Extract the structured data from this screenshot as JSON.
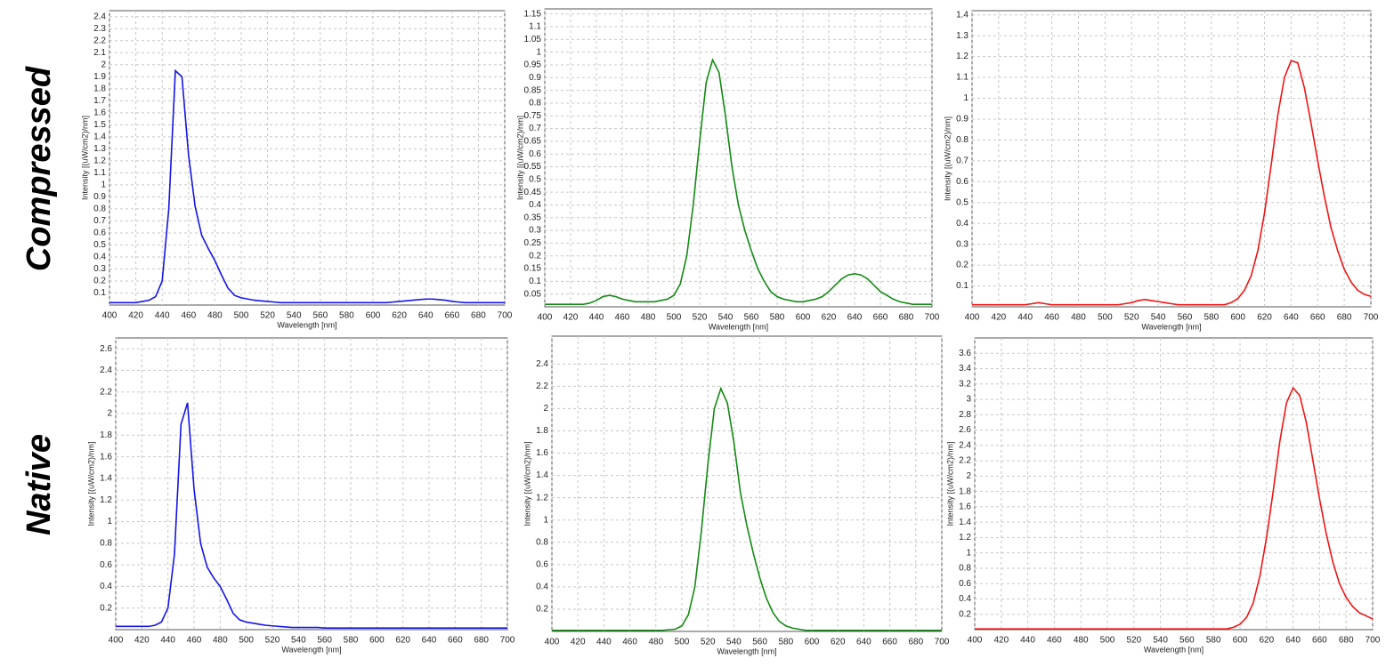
{
  "row_labels": [
    "Compressed",
    "Native"
  ],
  "chart_data": [
    {
      "type": "line",
      "xlabel": "Wavelength [nm]",
      "ylabel": "Intensity [(uW/cm2)/nm]",
      "grid": true,
      "x": [
        400,
        405,
        410,
        415,
        420,
        425,
        430,
        435,
        440,
        445,
        450,
        455,
        460,
        465,
        470,
        475,
        480,
        485,
        490,
        495,
        500,
        505,
        510,
        515,
        520,
        525,
        530,
        535,
        540,
        545,
        550,
        555,
        560,
        565,
        570,
        575,
        580,
        585,
        590,
        595,
        600,
        605,
        610,
        615,
        620,
        625,
        630,
        635,
        640,
        645,
        650,
        655,
        660,
        665,
        670,
        675,
        680,
        685,
        690,
        695,
        700
      ],
      "series": [
        {
          "color": "#1414e6",
          "values": [
            0.02,
            0.02,
            0.02,
            0.02,
            0.02,
            0.03,
            0.04,
            0.07,
            0.2,
            0.8,
            1.95,
            1.9,
            1.25,
            0.82,
            0.58,
            0.47,
            0.37,
            0.25,
            0.14,
            0.08,
            0.06,
            0.05,
            0.04,
            0.035,
            0.03,
            0.025,
            0.02,
            0.02,
            0.02,
            0.02,
            0.02,
            0.02,
            0.02,
            0.02,
            0.02,
            0.02,
            0.02,
            0.02,
            0.02,
            0.02,
            0.02,
            0.02,
            0.02,
            0.025,
            0.03,
            0.035,
            0.04,
            0.045,
            0.05,
            0.05,
            0.045,
            0.04,
            0.03,
            0.025,
            0.02,
            0.02,
            0.02,
            0.02,
            0.02,
            0.02,
            0.02
          ]
        }
      ],
      "xlim": [
        400,
        700
      ],
      "xticks": [
        400,
        420,
        440,
        460,
        480,
        500,
        520,
        540,
        560,
        580,
        600,
        620,
        640,
        660,
        680,
        700
      ],
      "ylim": [
        0,
        2.45
      ],
      "yticks": [
        0.1,
        0.2,
        0.3,
        0.4,
        0.5,
        0.6,
        0.7,
        0.8,
        0.9,
        1,
        1.1,
        1.2,
        1.3,
        1.4,
        1.5,
        1.6,
        1.7,
        1.8,
        1.9,
        2,
        2.1,
        2.2,
        2.3,
        2.4
      ]
    },
    {
      "type": "line",
      "xlabel": "Wavelength [nm]",
      "ylabel": "Intensity [(uW/cm2)/nm]",
      "grid": true,
      "x": [
        400,
        405,
        410,
        415,
        420,
        425,
        430,
        435,
        440,
        445,
        450,
        455,
        460,
        465,
        470,
        475,
        480,
        485,
        490,
        495,
        500,
        505,
        510,
        515,
        520,
        525,
        530,
        535,
        540,
        545,
        550,
        555,
        560,
        565,
        570,
        575,
        580,
        585,
        590,
        595,
        600,
        605,
        610,
        615,
        620,
        625,
        630,
        635,
        640,
        645,
        650,
        655,
        660,
        665,
        670,
        675,
        680,
        685,
        690,
        695,
        700
      ],
      "series": [
        {
          "color": "#138a13",
          "values": [
            0.01,
            0.01,
            0.01,
            0.01,
            0.01,
            0.01,
            0.01,
            0.015,
            0.025,
            0.04,
            0.045,
            0.04,
            0.03,
            0.025,
            0.02,
            0.02,
            0.02,
            0.02,
            0.025,
            0.03,
            0.045,
            0.09,
            0.2,
            0.4,
            0.65,
            0.88,
            0.97,
            0.92,
            0.75,
            0.55,
            0.4,
            0.3,
            0.22,
            0.15,
            0.1,
            0.06,
            0.04,
            0.03,
            0.025,
            0.02,
            0.02,
            0.025,
            0.03,
            0.04,
            0.06,
            0.085,
            0.11,
            0.125,
            0.13,
            0.125,
            0.11,
            0.085,
            0.06,
            0.045,
            0.03,
            0.02,
            0.015,
            0.01,
            0.01,
            0.01,
            0.01
          ]
        }
      ],
      "xlim": [
        400,
        700
      ],
      "xticks": [
        400,
        420,
        440,
        460,
        480,
        500,
        520,
        540,
        560,
        580,
        600,
        620,
        640,
        660,
        680,
        700
      ],
      "ylim": [
        0,
        1.17
      ],
      "yticks": [
        0.05,
        0.1,
        0.15,
        0.2,
        0.25,
        0.3,
        0.35,
        0.4,
        0.45,
        0.5,
        0.55,
        0.6,
        0.65,
        0.7,
        0.75,
        0.8,
        0.85,
        0.9,
        0.95,
        1,
        1.05,
        1.1,
        1.15
      ]
    },
    {
      "type": "line",
      "xlabel": "Wavelength [nm]",
      "ylabel": "Intensity [(uW/cm2)/nm]",
      "grid": true,
      "x": [
        400,
        405,
        410,
        415,
        420,
        425,
        430,
        435,
        440,
        445,
        450,
        455,
        460,
        465,
        470,
        475,
        480,
        485,
        490,
        495,
        500,
        505,
        510,
        515,
        520,
        525,
        530,
        535,
        540,
        545,
        550,
        555,
        560,
        565,
        570,
        575,
        580,
        585,
        590,
        595,
        600,
        605,
        610,
        615,
        620,
        625,
        630,
        635,
        640,
        645,
        650,
        655,
        660,
        665,
        670,
        675,
        680,
        685,
        690,
        695,
        700
      ],
      "series": [
        {
          "color": "#f01414",
          "values": [
            0.01,
            0.01,
            0.01,
            0.01,
            0.01,
            0.01,
            0.01,
            0.01,
            0.01,
            0.015,
            0.02,
            0.015,
            0.01,
            0.01,
            0.01,
            0.01,
            0.01,
            0.01,
            0.01,
            0.01,
            0.01,
            0.01,
            0.01,
            0.015,
            0.02,
            0.03,
            0.035,
            0.03,
            0.025,
            0.02,
            0.015,
            0.01,
            0.01,
            0.01,
            0.01,
            0.01,
            0.01,
            0.01,
            0.01,
            0.02,
            0.04,
            0.08,
            0.15,
            0.27,
            0.45,
            0.68,
            0.92,
            1.1,
            1.18,
            1.17,
            1.05,
            0.88,
            0.7,
            0.53,
            0.38,
            0.27,
            0.18,
            0.12,
            0.08,
            0.06,
            0.05
          ]
        }
      ],
      "xlim": [
        400,
        700
      ],
      "xticks": [
        400,
        420,
        440,
        460,
        480,
        500,
        520,
        540,
        560,
        580,
        600,
        620,
        640,
        660,
        680,
        700
      ],
      "ylim": [
        0,
        1.42
      ],
      "yticks": [
        0.1,
        0.2,
        0.3,
        0.4,
        0.5,
        0.6,
        0.7,
        0.8,
        0.9,
        1,
        1.1,
        1.2,
        1.3,
        1.4
      ]
    },
    {
      "type": "line",
      "xlabel": "Wavelength [nm]",
      "ylabel": "Intensity [(uW/cm2)/nm]",
      "grid": true,
      "x": [
        400,
        405,
        410,
        415,
        420,
        425,
        430,
        435,
        440,
        445,
        450,
        455,
        460,
        465,
        470,
        475,
        480,
        485,
        490,
        495,
        500,
        505,
        510,
        515,
        520,
        525,
        530,
        535,
        540,
        545,
        550,
        555,
        560,
        565,
        570,
        575,
        580,
        585,
        590,
        595,
        600,
        605,
        610,
        615,
        620,
        625,
        630,
        635,
        640,
        645,
        650,
        655,
        660,
        665,
        670,
        675,
        680,
        685,
        690,
        695,
        700
      ],
      "series": [
        {
          "color": "#1414e6",
          "values": [
            0.03,
            0.03,
            0.03,
            0.03,
            0.03,
            0.03,
            0.04,
            0.07,
            0.2,
            0.7,
            1.9,
            2.1,
            1.3,
            0.8,
            0.58,
            0.48,
            0.4,
            0.28,
            0.15,
            0.09,
            0.07,
            0.06,
            0.05,
            0.04,
            0.035,
            0.03,
            0.025,
            0.02,
            0.02,
            0.02,
            0.02,
            0.02,
            0.015,
            0.015,
            0.015,
            0.015,
            0.015,
            0.015,
            0.015,
            0.015,
            0.015,
            0.015,
            0.015,
            0.015,
            0.015,
            0.015,
            0.015,
            0.015,
            0.015,
            0.015,
            0.015,
            0.015,
            0.015,
            0.015,
            0.015,
            0.015,
            0.015,
            0.015,
            0.015,
            0.015,
            0.015
          ]
        }
      ],
      "xlim": [
        400,
        700
      ],
      "xticks": [
        400,
        420,
        440,
        460,
        480,
        500,
        520,
        540,
        560,
        580,
        600,
        620,
        640,
        660,
        680,
        700
      ],
      "ylim": [
        0,
        2.7
      ],
      "yticks": [
        0.2,
        0.4,
        0.6,
        0.8,
        1,
        1.2,
        1.4,
        1.6,
        1.8,
        2,
        2.2,
        2.4,
        2.6
      ]
    },
    {
      "type": "line",
      "xlabel": "Wavelength [nm]",
      "ylabel": "Intensity [(uW/cm2)/nm]",
      "grid": true,
      "x": [
        400,
        405,
        410,
        415,
        420,
        425,
        430,
        435,
        440,
        445,
        450,
        455,
        460,
        465,
        470,
        475,
        480,
        485,
        490,
        495,
        500,
        505,
        510,
        515,
        520,
        525,
        530,
        535,
        540,
        545,
        550,
        555,
        560,
        565,
        570,
        575,
        580,
        585,
        590,
        595,
        600,
        605,
        610,
        615,
        620,
        625,
        630,
        635,
        640,
        645,
        650,
        655,
        660,
        665,
        670,
        675,
        680,
        685,
        690,
        695,
        700
      ],
      "series": [
        {
          "color": "#138a13",
          "values": [
            0.01,
            0.01,
            0.01,
            0.01,
            0.01,
            0.01,
            0.01,
            0.01,
            0.01,
            0.01,
            0.01,
            0.01,
            0.01,
            0.01,
            0.01,
            0.01,
            0.01,
            0.01,
            0.015,
            0.02,
            0.05,
            0.15,
            0.4,
            0.9,
            1.5,
            2.0,
            2.18,
            2.05,
            1.7,
            1.25,
            0.95,
            0.7,
            0.48,
            0.3,
            0.17,
            0.09,
            0.05,
            0.03,
            0.02,
            0.01,
            0.01,
            0.01,
            0.01,
            0.01,
            0.01,
            0.01,
            0.01,
            0.01,
            0.01,
            0.01,
            0.01,
            0.01,
            0.01,
            0.01,
            0.01,
            0.01,
            0.01,
            0.01,
            0.01,
            0.01,
            0.01
          ]
        }
      ],
      "xlim": [
        400,
        700
      ],
      "xticks": [
        400,
        420,
        440,
        460,
        480,
        500,
        520,
        540,
        560,
        580,
        600,
        620,
        640,
        660,
        680,
        700
      ],
      "ylim": [
        0,
        2.65
      ],
      "yticks": [
        0.2,
        0.4,
        0.6,
        0.8,
        1,
        1.2,
        1.4,
        1.6,
        1.8,
        2,
        2.2,
        2.4
      ]
    },
    {
      "type": "line",
      "xlabel": "Wavelength [nm]",
      "ylabel": "Intensity [(uW/cm2)/nm]",
      "grid": true,
      "x": [
        400,
        405,
        410,
        415,
        420,
        425,
        430,
        435,
        440,
        445,
        450,
        455,
        460,
        465,
        470,
        475,
        480,
        485,
        490,
        495,
        500,
        505,
        510,
        515,
        520,
        525,
        530,
        535,
        540,
        545,
        550,
        555,
        560,
        565,
        570,
        575,
        580,
        585,
        590,
        595,
        600,
        605,
        610,
        615,
        620,
        625,
        630,
        635,
        640,
        645,
        650,
        655,
        660,
        665,
        670,
        675,
        680,
        685,
        690,
        695,
        700
      ],
      "series": [
        {
          "color": "#f01414",
          "values": [
            0.01,
            0.01,
            0.01,
            0.01,
            0.01,
            0.01,
            0.01,
            0.01,
            0.01,
            0.01,
            0.01,
            0.01,
            0.01,
            0.01,
            0.01,
            0.01,
            0.01,
            0.01,
            0.01,
            0.01,
            0.01,
            0.01,
            0.01,
            0.01,
            0.01,
            0.01,
            0.01,
            0.01,
            0.01,
            0.01,
            0.01,
            0.01,
            0.01,
            0.01,
            0.01,
            0.01,
            0.01,
            0.01,
            0.01,
            0.03,
            0.07,
            0.16,
            0.35,
            0.7,
            1.2,
            1.8,
            2.45,
            2.95,
            3.15,
            3.05,
            2.7,
            2.2,
            1.7,
            1.25,
            0.88,
            0.6,
            0.42,
            0.3,
            0.22,
            0.18,
            0.14
          ]
        }
      ],
      "xlim": [
        400,
        700
      ],
      "xticks": [
        400,
        420,
        440,
        460,
        480,
        500,
        520,
        540,
        560,
        580,
        600,
        620,
        640,
        660,
        680,
        700
      ],
      "ylim": [
        0,
        3.8
      ],
      "yticks": [
        0.2,
        0.4,
        0.6,
        0.8,
        1,
        1.2,
        1.4,
        1.6,
        1.8,
        2,
        2.2,
        2.4,
        2.6,
        2.8,
        3,
        3.2,
        3.4,
        3.6
      ]
    }
  ]
}
